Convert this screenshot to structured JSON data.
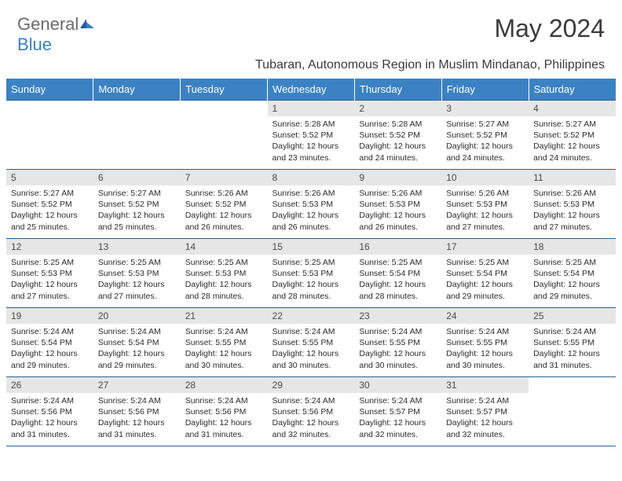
{
  "brand": {
    "part1": "General",
    "part2": "Blue"
  },
  "title": "May 2024",
  "location": "Tubaran, Autonomous Region in Muslim Mindanao, Philippines",
  "colors": {
    "header_bg": "#3b82c4",
    "header_text": "#ffffff",
    "daynum_bg": "#e6e6e6",
    "daynum_text": "#4a4a4a",
    "border": "#2f5f8a",
    "title_color": "#3b3b3b",
    "logo_gray": "#6b6b6b",
    "logo_blue": "#3b82c4"
  },
  "weekdays": [
    "Sunday",
    "Monday",
    "Tuesday",
    "Wednesday",
    "Thursday",
    "Friday",
    "Saturday"
  ],
  "weeks": [
    [
      {
        "empty": true
      },
      {
        "empty": true
      },
      {
        "empty": true
      },
      {
        "num": "1",
        "sunrise": "Sunrise: 5:28 AM",
        "sunset": "Sunset: 5:52 PM",
        "daylight": "Daylight: 12 hours and 23 minutes."
      },
      {
        "num": "2",
        "sunrise": "Sunrise: 5:28 AM",
        "sunset": "Sunset: 5:52 PM",
        "daylight": "Daylight: 12 hours and 24 minutes."
      },
      {
        "num": "3",
        "sunrise": "Sunrise: 5:27 AM",
        "sunset": "Sunset: 5:52 PM",
        "daylight": "Daylight: 12 hours and 24 minutes."
      },
      {
        "num": "4",
        "sunrise": "Sunrise: 5:27 AM",
        "sunset": "Sunset: 5:52 PM",
        "daylight": "Daylight: 12 hours and 24 minutes."
      }
    ],
    [
      {
        "num": "5",
        "sunrise": "Sunrise: 5:27 AM",
        "sunset": "Sunset: 5:52 PM",
        "daylight": "Daylight: 12 hours and 25 minutes."
      },
      {
        "num": "6",
        "sunrise": "Sunrise: 5:27 AM",
        "sunset": "Sunset: 5:52 PM",
        "daylight": "Daylight: 12 hours and 25 minutes."
      },
      {
        "num": "7",
        "sunrise": "Sunrise: 5:26 AM",
        "sunset": "Sunset: 5:52 PM",
        "daylight": "Daylight: 12 hours and 26 minutes."
      },
      {
        "num": "8",
        "sunrise": "Sunrise: 5:26 AM",
        "sunset": "Sunset: 5:53 PM",
        "daylight": "Daylight: 12 hours and 26 minutes."
      },
      {
        "num": "9",
        "sunrise": "Sunrise: 5:26 AM",
        "sunset": "Sunset: 5:53 PM",
        "daylight": "Daylight: 12 hours and 26 minutes."
      },
      {
        "num": "10",
        "sunrise": "Sunrise: 5:26 AM",
        "sunset": "Sunset: 5:53 PM",
        "daylight": "Daylight: 12 hours and 27 minutes."
      },
      {
        "num": "11",
        "sunrise": "Sunrise: 5:26 AM",
        "sunset": "Sunset: 5:53 PM",
        "daylight": "Daylight: 12 hours and 27 minutes."
      }
    ],
    [
      {
        "num": "12",
        "sunrise": "Sunrise: 5:25 AM",
        "sunset": "Sunset: 5:53 PM",
        "daylight": "Daylight: 12 hours and 27 minutes."
      },
      {
        "num": "13",
        "sunrise": "Sunrise: 5:25 AM",
        "sunset": "Sunset: 5:53 PM",
        "daylight": "Daylight: 12 hours and 27 minutes."
      },
      {
        "num": "14",
        "sunrise": "Sunrise: 5:25 AM",
        "sunset": "Sunset: 5:53 PM",
        "daylight": "Daylight: 12 hours and 28 minutes."
      },
      {
        "num": "15",
        "sunrise": "Sunrise: 5:25 AM",
        "sunset": "Sunset: 5:53 PM",
        "daylight": "Daylight: 12 hours and 28 minutes."
      },
      {
        "num": "16",
        "sunrise": "Sunrise: 5:25 AM",
        "sunset": "Sunset: 5:54 PM",
        "daylight": "Daylight: 12 hours and 28 minutes."
      },
      {
        "num": "17",
        "sunrise": "Sunrise: 5:25 AM",
        "sunset": "Sunset: 5:54 PM",
        "daylight": "Daylight: 12 hours and 29 minutes."
      },
      {
        "num": "18",
        "sunrise": "Sunrise: 5:25 AM",
        "sunset": "Sunset: 5:54 PM",
        "daylight": "Daylight: 12 hours and 29 minutes."
      }
    ],
    [
      {
        "num": "19",
        "sunrise": "Sunrise: 5:24 AM",
        "sunset": "Sunset: 5:54 PM",
        "daylight": "Daylight: 12 hours and 29 minutes."
      },
      {
        "num": "20",
        "sunrise": "Sunrise: 5:24 AM",
        "sunset": "Sunset: 5:54 PM",
        "daylight": "Daylight: 12 hours and 29 minutes."
      },
      {
        "num": "21",
        "sunrise": "Sunrise: 5:24 AM",
        "sunset": "Sunset: 5:55 PM",
        "daylight": "Daylight: 12 hours and 30 minutes."
      },
      {
        "num": "22",
        "sunrise": "Sunrise: 5:24 AM",
        "sunset": "Sunset: 5:55 PM",
        "daylight": "Daylight: 12 hours and 30 minutes."
      },
      {
        "num": "23",
        "sunrise": "Sunrise: 5:24 AM",
        "sunset": "Sunset: 5:55 PM",
        "daylight": "Daylight: 12 hours and 30 minutes."
      },
      {
        "num": "24",
        "sunrise": "Sunrise: 5:24 AM",
        "sunset": "Sunset: 5:55 PM",
        "daylight": "Daylight: 12 hours and 30 minutes."
      },
      {
        "num": "25",
        "sunrise": "Sunrise: 5:24 AM",
        "sunset": "Sunset: 5:55 PM",
        "daylight": "Daylight: 12 hours and 31 minutes."
      }
    ],
    [
      {
        "num": "26",
        "sunrise": "Sunrise: 5:24 AM",
        "sunset": "Sunset: 5:56 PM",
        "daylight": "Daylight: 12 hours and 31 minutes."
      },
      {
        "num": "27",
        "sunrise": "Sunrise: 5:24 AM",
        "sunset": "Sunset: 5:56 PM",
        "daylight": "Daylight: 12 hours and 31 minutes."
      },
      {
        "num": "28",
        "sunrise": "Sunrise: 5:24 AM",
        "sunset": "Sunset: 5:56 PM",
        "daylight": "Daylight: 12 hours and 31 minutes."
      },
      {
        "num": "29",
        "sunrise": "Sunrise: 5:24 AM",
        "sunset": "Sunset: 5:56 PM",
        "daylight": "Daylight: 12 hours and 32 minutes."
      },
      {
        "num": "30",
        "sunrise": "Sunrise: 5:24 AM",
        "sunset": "Sunset: 5:57 PM",
        "daylight": "Daylight: 12 hours and 32 minutes."
      },
      {
        "num": "31",
        "sunrise": "Sunrise: 5:24 AM",
        "sunset": "Sunset: 5:57 PM",
        "daylight": "Daylight: 12 hours and 32 minutes."
      },
      {
        "empty": true
      }
    ]
  ]
}
